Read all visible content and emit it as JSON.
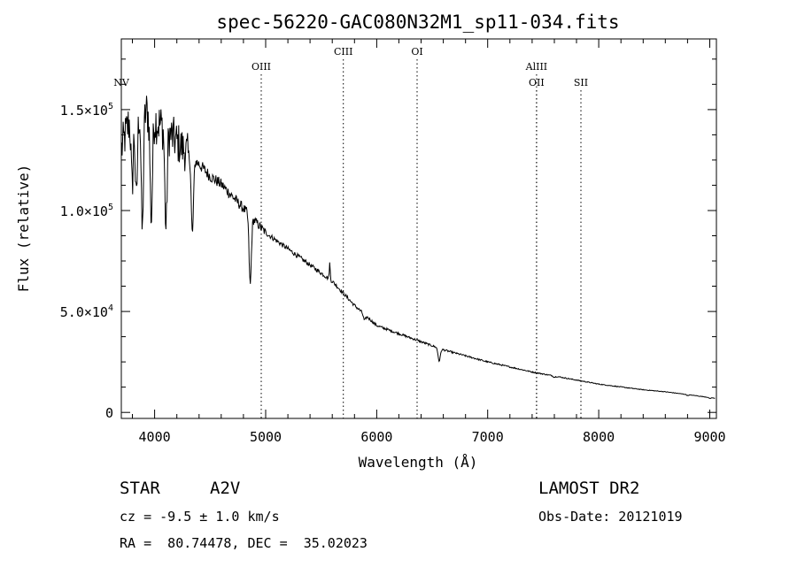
{
  "chart_data": {
    "type": "line",
    "title": "spec-56220-GAC080N32M1_sp11-034.fits",
    "xlabel": "Wavelength (Å)",
    "ylabel": "Flux (relative)",
    "xlim": [
      3700,
      9060
    ],
    "ylim": [
      -3000,
      185000
    ],
    "xticks": [
      {
        "value": 4000,
        "label": "4000"
      },
      {
        "value": 5000,
        "label": "5000"
      },
      {
        "value": 6000,
        "label": "6000"
      },
      {
        "value": 7000,
        "label": "7000"
      },
      {
        "value": 8000,
        "label": "8000"
      },
      {
        "value": 9000,
        "label": "9000"
      }
    ],
    "yticks": [
      {
        "value": 0,
        "mantissa": "0",
        "exp": ""
      },
      {
        "value": 50000,
        "mantissa": "5.0×10",
        "exp": "4"
      },
      {
        "value": 100000,
        "mantissa": "1.0×10",
        "exp": "5"
      },
      {
        "value": 150000,
        "mantissa": "1.5×10",
        "exp": "5"
      }
    ],
    "spectral_lines": [
      {
        "name": "NV",
        "wavelength": 3720,
        "label_row": 2
      },
      {
        "name": "OIII",
        "wavelength": 4960,
        "label_row": 1
      },
      {
        "name": "CIII",
        "wavelength": 5700,
        "label_row": 0
      },
      {
        "name": "OI",
        "wavelength": 6364,
        "label_row": 0
      },
      {
        "name": "AlIII",
        "wavelength": 7440,
        "label_row": 1
      },
      {
        "name": "OII",
        "wavelength": 7440,
        "label_row": 2
      },
      {
        "name": "SII",
        "wavelength": 7840,
        "label_row": 2
      }
    ],
    "continuum": [
      [
        3700,
        130000
      ],
      [
        3800,
        150000
      ],
      [
        3900,
        150000
      ],
      [
        4000,
        145000
      ],
      [
        4100,
        140000
      ],
      [
        4200,
        134000
      ],
      [
        4300,
        128000
      ],
      [
        4400,
        123000
      ],
      [
        4500,
        117000
      ],
      [
        4600,
        113000
      ],
      [
        4700,
        107000
      ],
      [
        4800,
        101000
      ],
      [
        4900,
        95000
      ],
      [
        5000,
        89000
      ],
      [
        5200,
        81000
      ],
      [
        5400,
        73000
      ],
      [
        5600,
        65000
      ],
      [
        5800,
        53000
      ],
      [
        6000,
        43000
      ],
      [
        6200,
        39000
      ],
      [
        6400,
        35000
      ],
      [
        6600,
        31000
      ],
      [
        6800,
        28000
      ],
      [
        7000,
        25000
      ],
      [
        7200,
        22500
      ],
      [
        7400,
        20000
      ],
      [
        7600,
        18000
      ],
      [
        7800,
        16000
      ],
      [
        8000,
        14000
      ],
      [
        8200,
        12600
      ],
      [
        8400,
        11200
      ],
      [
        8600,
        10200
      ],
      [
        8800,
        8800
      ],
      [
        9050,
        7000
      ]
    ],
    "absorption_features": [
      [
        3798,
        0.25
      ],
      [
        3835,
        0.3
      ],
      [
        3889,
        0.4
      ],
      [
        3970,
        0.35
      ],
      [
        4102,
        0.35
      ],
      [
        4340,
        0.3
      ],
      [
        4861,
        0.35
      ],
      [
        5890,
        0.06
      ],
      [
        6563,
        0.2
      ],
      [
        7600,
        0.03
      ],
      [
        8800,
        0.05
      ],
      [
        9000,
        0.06
      ]
    ],
    "emission_features": [
      [
        5577,
        0.12
      ]
    ]
  },
  "info": {
    "star_label": "STAR",
    "spectral_class": "A2V",
    "survey": "LAMOST DR2",
    "cz": "cz = -9.5 ± 1.0 km/s",
    "obs_date": "Obs-Date: 20121019",
    "coords": "RA =  80.74478, DEC =  35.02023"
  }
}
